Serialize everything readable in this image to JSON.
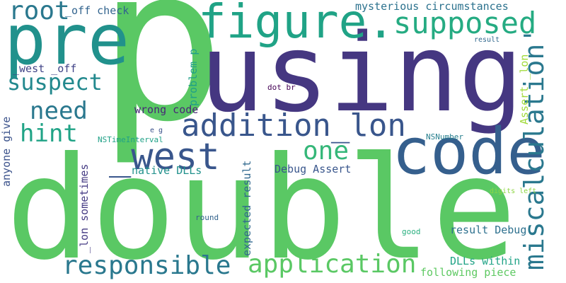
{
  "word_cloud": {
    "words": [
      {
        "id": "p",
        "text": "p",
        "color": "#5ac864"
      },
      {
        "id": "double",
        "text": "double",
        "color": "#5ac864"
      },
      {
        "id": "using",
        "text": "using",
        "color": "#453781"
      },
      {
        "id": "pre",
        "text": "pre",
        "color": "#21918c"
      },
      {
        "id": "figure",
        "text": "figure.",
        "color": "#20a386"
      },
      {
        "id": "code",
        "text": "code",
        "color": "#355f8d"
      },
      {
        "id": "addition_lon",
        "text": "addition_lon",
        "color": "#39568c"
      },
      {
        "id": "west",
        "text": "_west",
        "color": "#39568c"
      },
      {
        "id": "supposed",
        "text": "supposed",
        "color": "#25ab82"
      },
      {
        "id": "miscalculation",
        "text": "miscalculation'",
        "color": "#2a788e"
      },
      {
        "id": "root",
        "text": "root",
        "color": "#2a788e"
      },
      {
        "id": "suspect",
        "text": "suspect",
        "color": "#23898e"
      },
      {
        "id": "need",
        "text": "need",
        "color": "#2a788e"
      },
      {
        "id": "hint",
        "text": "hint",
        "color": "#20a386"
      },
      {
        "id": "one",
        "text": "one",
        "color": "#35b779"
      },
      {
        "id": "responsible",
        "text": "responsible",
        "color": "#2a788e"
      },
      {
        "id": "application",
        "text": "application",
        "color": "#5ac864"
      },
      {
        "id": "off_check",
        "text": "_off check",
        "color": "#32648e"
      },
      {
        "id": "mysterious",
        "text": "mysterious circumstances",
        "color": "#2c728e"
      },
      {
        "id": "west_off",
        "text": "_west _off",
        "color": "#404387"
      },
      {
        "id": "wrong_code",
        "text": "wrong code",
        "color": "#482677"
      },
      {
        "id": "problem_p",
        "text": "problem p",
        "color": "#1fa088"
      },
      {
        "id": "dot_br",
        "text": "dot br",
        "color": "#440154"
      },
      {
        "id": "assert_lon",
        "text": "Assert _lon",
        "color": "#a0da39"
      },
      {
        "id": "result_top",
        "text": "result",
        "color": "#31688e"
      },
      {
        "id": "native_dlls",
        "text": "native DLLs",
        "color": "#21918c"
      },
      {
        "id": "debug_assert",
        "text": "Debug Assert",
        "color": "#39568c"
      },
      {
        "id": "anyone_give",
        "text": "anyone give",
        "color": "#3b528b"
      },
      {
        "id": "lon_sometimes",
        "text": "_lon sometimes",
        "color": "#443a83"
      },
      {
        "id": "expected_result",
        "text": "expected result",
        "color": "#31688e"
      },
      {
        "id": "nstimeinterval",
        "text": "NSTimeInterval",
        "color": "#1fa187"
      },
      {
        "id": "eg",
        "text": "e g",
        "color": "#3b528b"
      },
      {
        "id": "nsnumber",
        "text": "NSNumber",
        "color": "#277f8e"
      },
      {
        "id": "digits_left",
        "text": "digits left",
        "color": "#8ed645"
      },
      {
        "id": "round",
        "text": "round",
        "color": "#33638d"
      },
      {
        "id": "good",
        "text": "good",
        "color": "#29af7f"
      },
      {
        "id": "result_debug",
        "text": "result Debug",
        "color": "#2d708e"
      },
      {
        "id": "dlls_within",
        "text": "DLLs within",
        "color": "#20a386"
      },
      {
        "id": "following_piece",
        "text": "following piece",
        "color": "#5ec962"
      }
    ]
  }
}
